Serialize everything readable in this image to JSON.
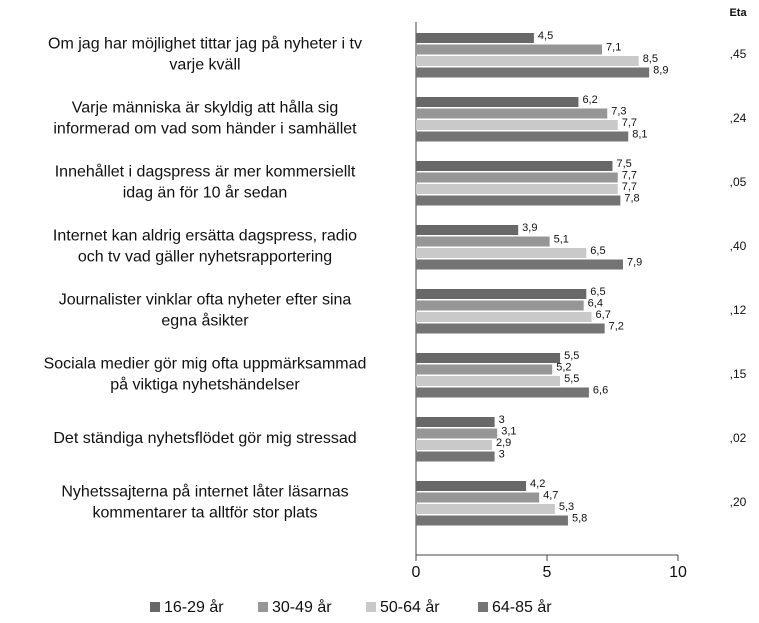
{
  "chart_data": {
    "type": "hbar",
    "categories": [
      [
        "Om jag har möjlighet tittar jag på nyheter i tv",
        "varje kväll"
      ],
      [
        "Varje människa är skyldig att hålla sig",
        "informerad om vad som händer i samhället"
      ],
      [
        "Innehållet i dagspress är mer kommersiellt",
        "idag än för 10 år sedan"
      ],
      [
        "Internet kan aldrig ersätta dagspress, radio",
        "och tv vad gäller nyhetsrapportering"
      ],
      [
        "Journalister vinklar ofta nyheter efter sina",
        "egna åsikter"
      ],
      [
        "Sociala medier gör mig ofta uppmärksammad",
        "på viktiga nyhetshändelser"
      ],
      [
        "Det ständiga nyhetsflödet gör mig stressad"
      ],
      [
        "Nyhetssajterna på internet låter läsarnas",
        "kommentarer ta alltför stor plats"
      ]
    ],
    "series": [
      {
        "name": "16-29 år",
        "color": "#686868",
        "values": [
          4.5,
          6.2,
          7.5,
          3.9,
          6.5,
          5.5,
          3,
          4.2
        ],
        "value_labels": [
          "4,5",
          "6,2",
          "7,5",
          "3,9",
          "6,5",
          "5,5",
          "3",
          "4,2"
        ]
      },
      {
        "name": "30-49 år",
        "color": "#969696",
        "values": [
          7.1,
          7.3,
          7.7,
          5.1,
          6.4,
          5.2,
          3.1,
          4.7
        ],
        "value_labels": [
          "7,1",
          "7,3",
          "7,7",
          "5,1",
          "6,4",
          "5,2",
          "3,1",
          "4,7"
        ]
      },
      {
        "name": "50-64 år",
        "color": "#c9c9c9",
        "values": [
          8.5,
          7.7,
          7.7,
          6.5,
          6.7,
          5.5,
          2.9,
          5.3
        ],
        "value_labels": [
          "8,5",
          "7,7",
          "7,7",
          "6,5",
          "6,7",
          "5,5",
          "2,9",
          "5,3"
        ]
      },
      {
        "name": "64-85 år",
        "color": "#747474",
        "values": [
          8.9,
          8.1,
          7.8,
          7.9,
          7.2,
          6.6,
          3,
          5.8
        ],
        "value_labels": [
          "8,9",
          "8,1",
          "7,8",
          "7,9",
          "7,2",
          "6,6",
          "3",
          "5,8"
        ]
      }
    ],
    "eta": {
      "title": "Eta",
      "values": [
        ",45",
        ",24",
        ",05",
        ",40",
        ",12",
        ",15",
        ",02",
        ",20"
      ]
    },
    "xlim": [
      0,
      10
    ],
    "xticks": [
      0,
      5,
      10
    ]
  }
}
